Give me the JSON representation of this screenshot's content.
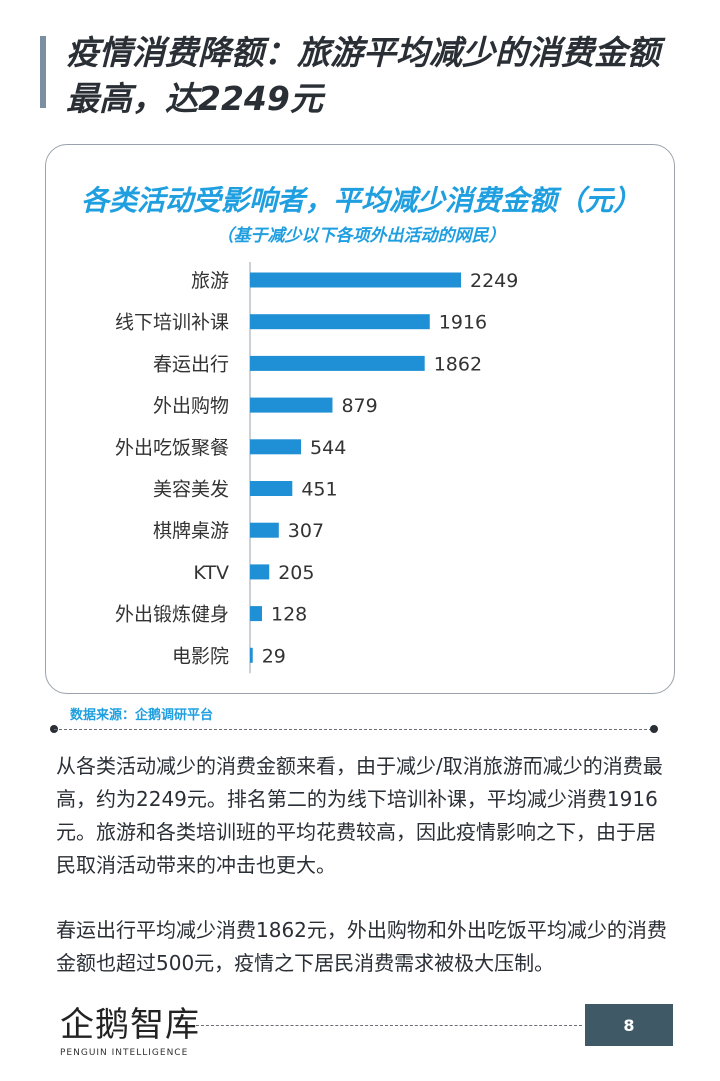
{
  "title": "疫情消费降额：旅游平均减少的消费金额最高，达2249元",
  "chart_data": {
    "type": "bar",
    "orientation": "horizontal",
    "title": "各类活动受影响者，平均减少消费金额（元）",
    "subtitle": "（基于减少以下各项外出活动的网民）",
    "categories": [
      "旅游",
      "线下培训补课",
      "春运出行",
      "外出购物",
      "外出吃饭聚餐",
      "美容美发",
      "棋牌桌游",
      "KTV",
      "外出锻炼健身",
      "电影院"
    ],
    "values": [
      2249,
      1916,
      1862,
      879,
      544,
      451,
      307,
      205,
      128,
      29
    ],
    "xlim": [
      0,
      2249
    ],
    "grid": false,
    "bar_color": "#1f8fd6"
  },
  "source": "数据来源：企鹅调研平台",
  "paragraphs": [
    "从各类活动减少的消费金额来看，由于减少/取消旅游而减少的消费最高，约为2249元。排名第二的为线下培训补课，平均减少消费1916元。旅游和各类培训班的平均花费较高，因此疫情影响之下，由于居民取消活动带来的冲击也更大。",
    "春运出行平均减少消费1862元，外出购物和外出吃饭平均减少的消费金额也超过500元，疫情之下居民消费需求被极大压制。"
  ],
  "logo": {
    "cn": "企鹅智库",
    "en": "PENGUIN INTELLIGENCE"
  },
  "page_number": "8"
}
